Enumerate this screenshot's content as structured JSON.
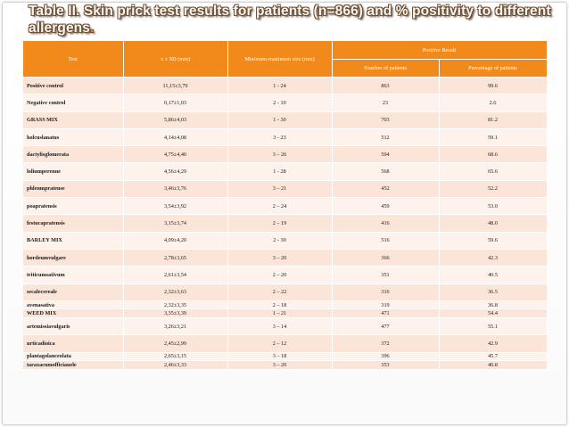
{
  "slide": {
    "title": "Table II. Skin prick test results for patients (n=866) and % positivity to different allergens",
    "title_end": "."
  },
  "table": {
    "headers": {
      "test": "Test",
      "mean_sd": "x ± SD (mm)",
      "min_max": "Minimum-maximum size (mm)",
      "positive_result": "Positive Result",
      "num_patients": "Number of patients",
      "pct_patients": "Percentage of patients"
    },
    "rows": [
      {
        "test": "Positive control",
        "mean_sd": "11,15±3,79",
        "range": "1 - 24",
        "n": "863",
        "pct": "99.6"
      },
      {
        "test": "Negative control",
        "mean_sd": "0,17±1,03",
        "range": "2 - 10",
        "n": "23",
        "pct": "2.6"
      },
      {
        "test": "GRASS MIX",
        "mean_sd": "5,86±4,03",
        "range": "1 - 30",
        "n": "703",
        "pct": "81.2"
      },
      {
        "test": "holcuslanatus",
        "mean_sd": "4,14±4,08",
        "range": "3 - 23",
        "n": "512",
        "pct": "59.1"
      },
      {
        "test": "dactylisglomerata",
        "mean_sd": "4,75±4,40",
        "range": "3 – 26",
        "n": "594",
        "pct": "68.6"
      },
      {
        "test": "loliumperenne",
        "mean_sd": "4,56±4,29",
        "range": "1 - 28",
        "n": "568",
        "pct": "65.6"
      },
      {
        "test": "phleumpratense",
        "mean_sd": "3,46±3,76",
        "range": "3 – 21",
        "n": "452",
        "pct": "52.2"
      },
      {
        "test": "poapratensis",
        "mean_sd": "3,54±3,92",
        "range": "2 – 24",
        "n": "459",
        "pct": "53.0"
      },
      {
        "test": "festucapratensis",
        "mean_sd": "3,15±3,74",
        "range": "2 – 19",
        "n": "416",
        "pct": "48.0"
      },
      {
        "test": "BARLEY MIX",
        "mean_sd": "4,09±4,20",
        "range": "2 - 30",
        "n": "516",
        "pct": "59.6"
      },
      {
        "test": "hordeumvulgare",
        "mean_sd": "2,78±3,65",
        "range": "3 – 20",
        "n": "366",
        "pct": "42.3"
      },
      {
        "test": "triticumsativum",
        "mean_sd": "2,61±3,54",
        "range": "2 – 20",
        "n": "351",
        "pct": "40.5"
      },
      {
        "test": "secalecereale",
        "mean_sd": "2,32±3,63",
        "range": "2 – 22",
        "n": "316",
        "pct": "36.5"
      },
      {
        "test": "avenasativa",
        "mean_sd": "2,32±3,35",
        "range": "2 – 18",
        "n": "319",
        "pct": "36.8"
      },
      {
        "test": "WEED MIX",
        "mean_sd": "3,35±3,39",
        "range": "1 – 21",
        "n": "471",
        "pct": "54.4"
      },
      {
        "test": "artemissiavulgaris",
        "mean_sd": "3,26±3,21",
        "range": "3 – 14",
        "n": "477",
        "pct": "55.1"
      },
      {
        "test": "urticadioica",
        "mean_sd": "2,45±2,99",
        "range": "2 – 12",
        "n": "372",
        "pct": "42.9"
      },
      {
        "test": "plantagolanceolata",
        "mean_sd": "2,65±3,15",
        "range": "3 – 18",
        "n": "396",
        "pct": "45.7"
      },
      {
        "test": "taraxacumofficianele",
        "mean_sd": "2,46±3,33",
        "range": "3 – 20",
        "n": "353",
        "pct": "40.8"
      }
    ]
  },
  "colors": {
    "header_orange": "#f28a1b",
    "row_a": "#fbe5d8",
    "row_b": "#fdf2ec",
    "title_text": "#fbf5ec"
  }
}
